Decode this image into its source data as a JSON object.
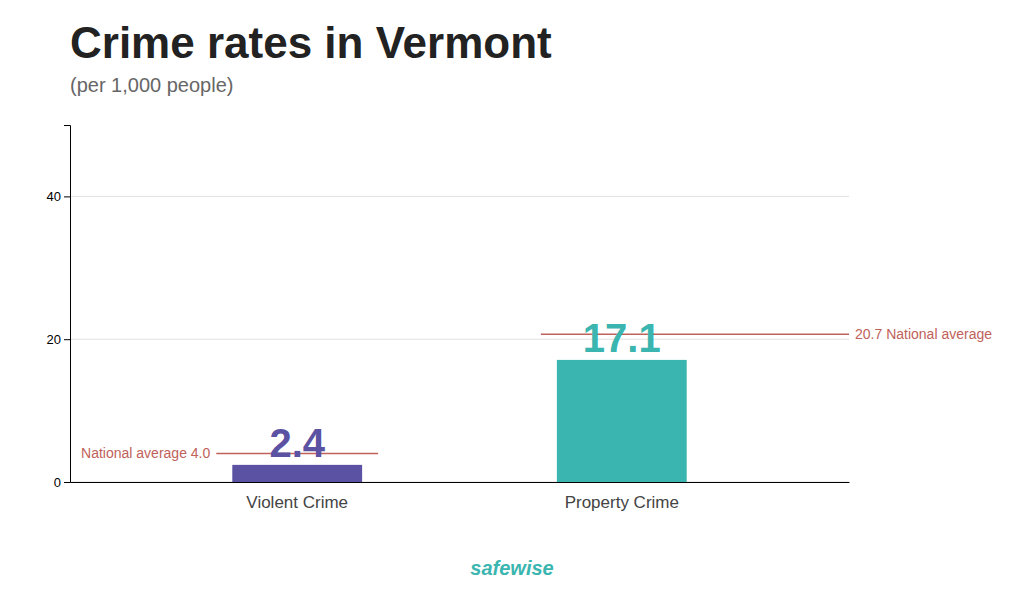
{
  "chart_data": {
    "type": "bar",
    "title": "Crime rates in Vermont",
    "subtitle": "(per 1,000 people)",
    "categories": [
      "Violent Crime",
      "Property Crime"
    ],
    "values": [
      2.4,
      17.1
    ],
    "colors": [
      "#5b52a3",
      "#3ab5b0"
    ],
    "national_averages": {
      "values": [
        4.0,
        20.7
      ],
      "labels": [
        "National average 4.0",
        "20.7 National average"
      ],
      "color": "#c0615a"
    },
    "annotation": "safewise",
    "ylim": [
      0,
      50
    ],
    "yticks": [
      0,
      20,
      40
    ],
    "grid": true,
    "data_labels": true
  }
}
